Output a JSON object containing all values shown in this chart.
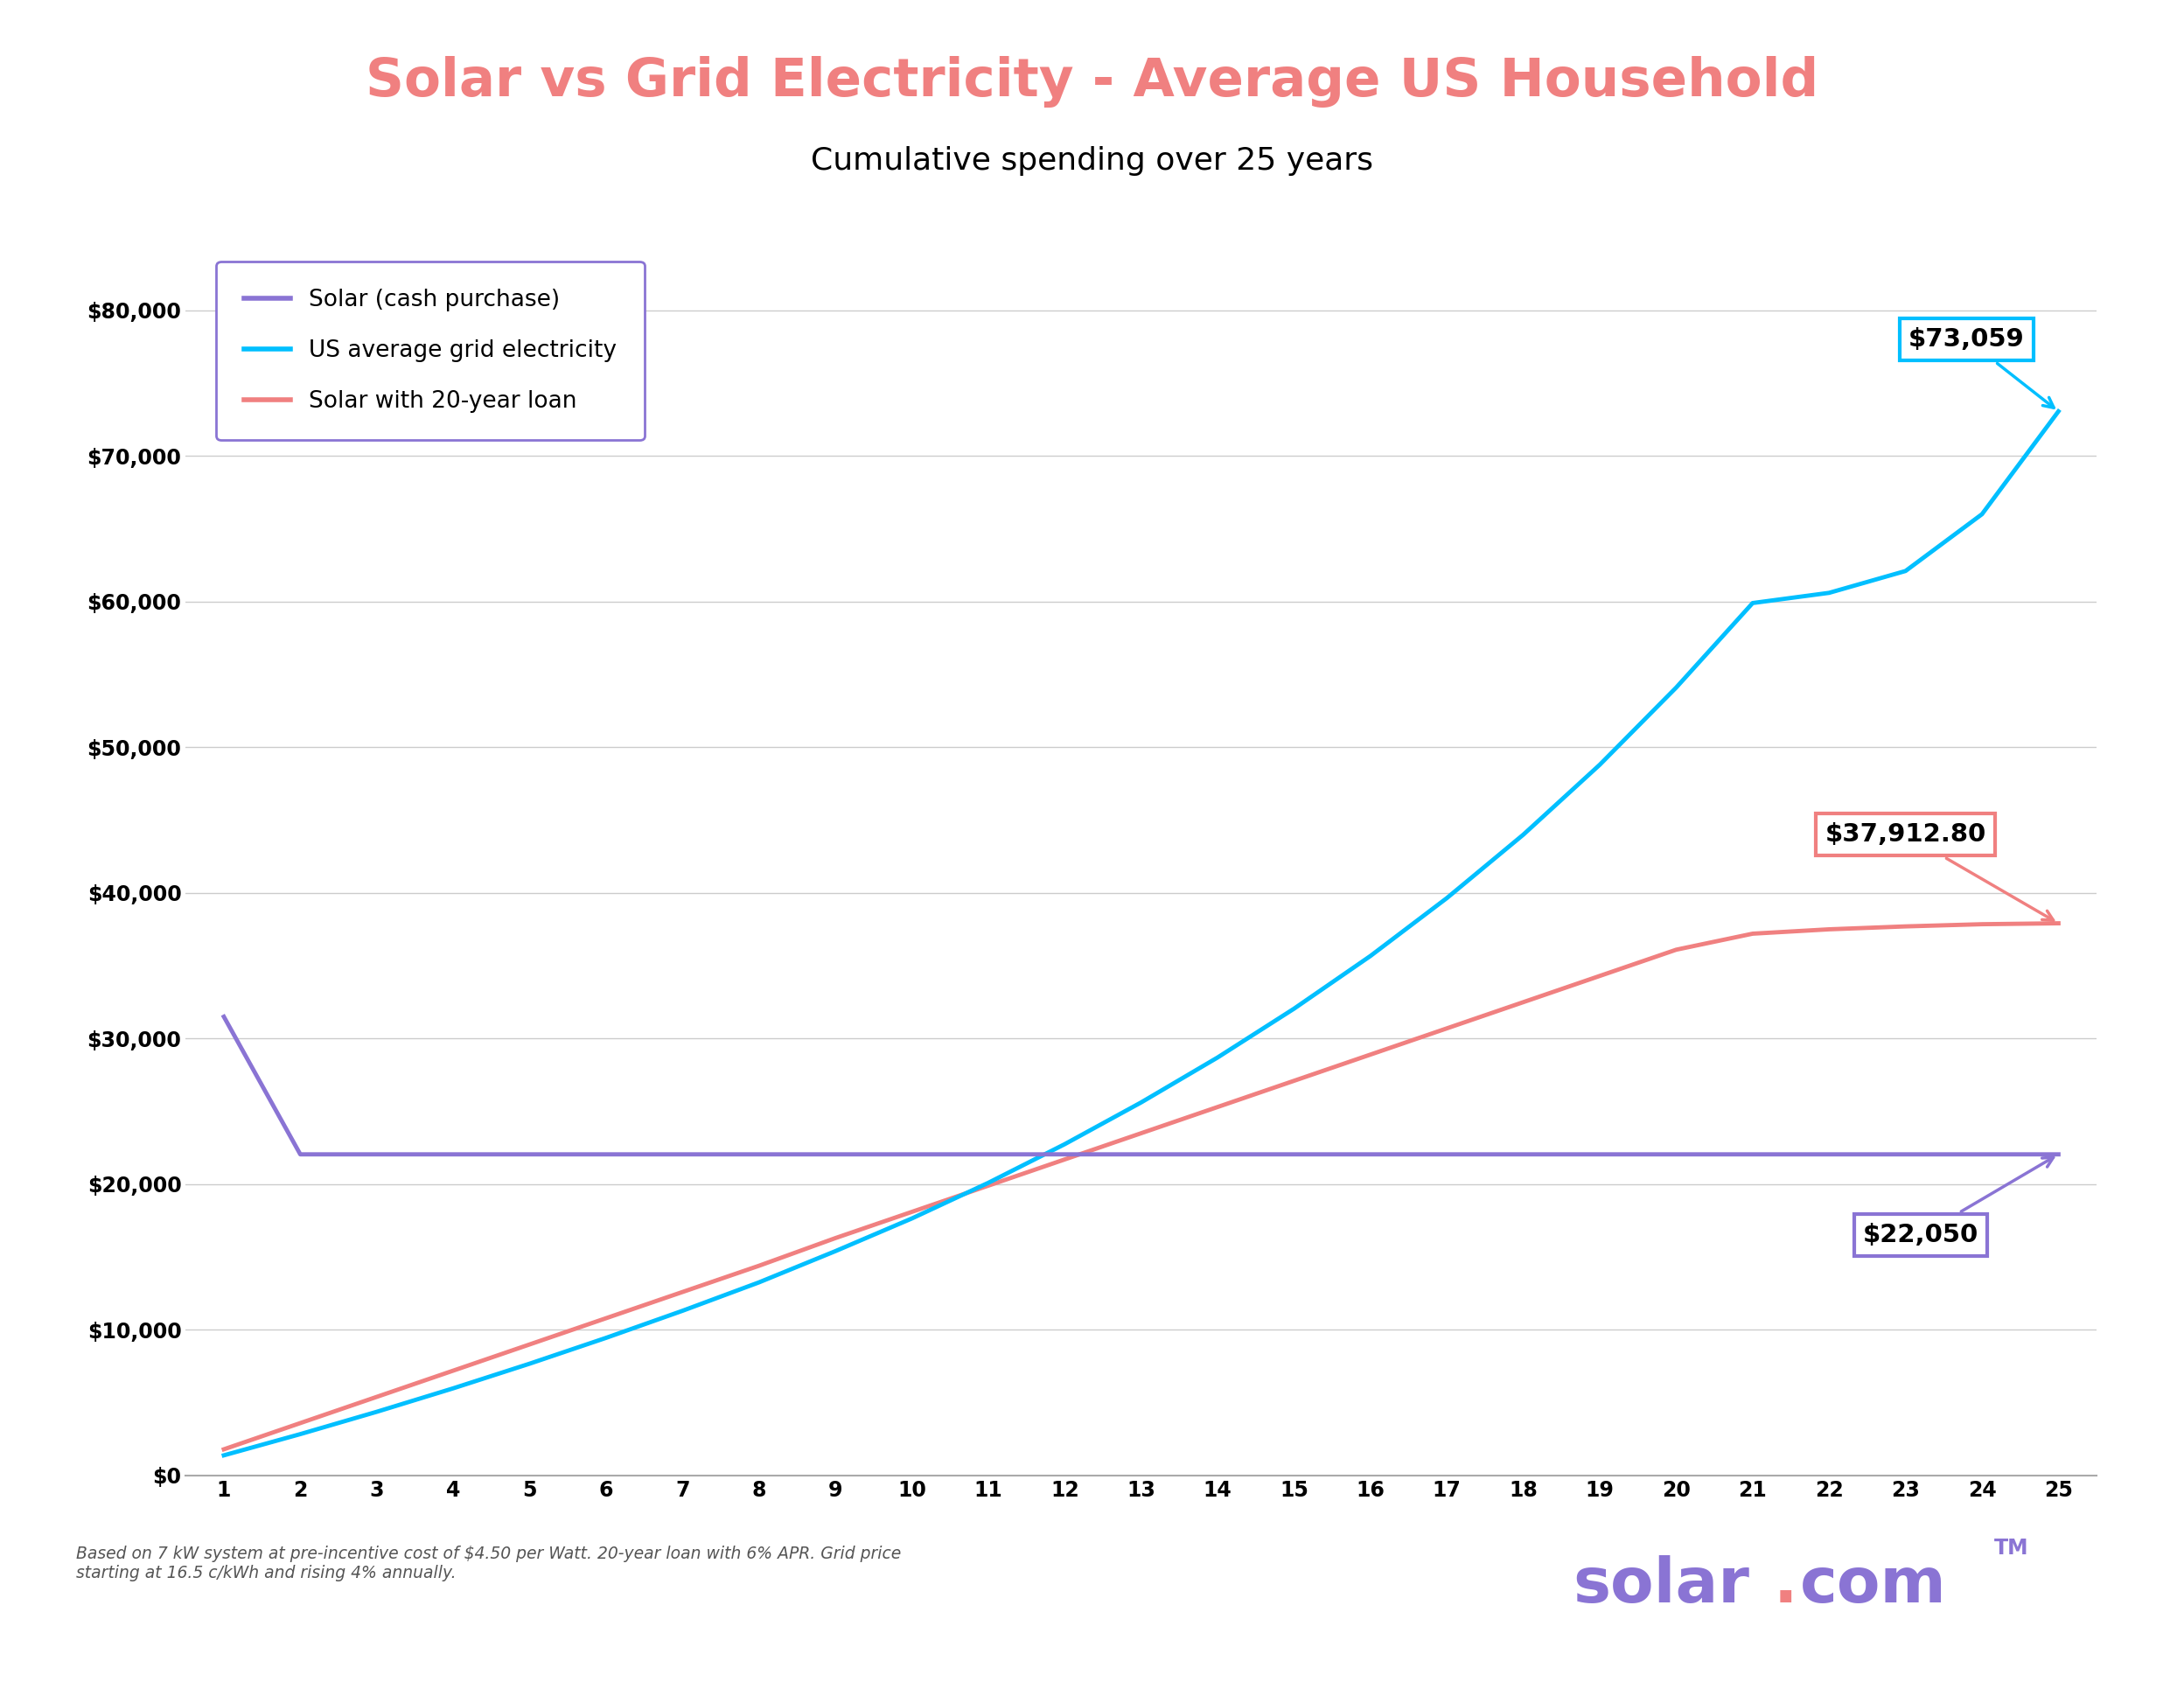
{
  "title": "Solar vs Grid Electricity - Average US Household",
  "subtitle": "Cumulative spending over 25 years",
  "title_color": "#F08080",
  "subtitle_color": "#000000",
  "background_color": "#FFFFFF",
  "years": [
    1,
    2,
    3,
    4,
    5,
    6,
    7,
    8,
    9,
    10,
    11,
    12,
    13,
    14,
    15,
    16,
    17,
    18,
    19,
    20,
    21,
    22,
    23,
    24,
    25
  ],
  "solar_cash": [
    31500,
    22050,
    22050,
    22050,
    22050,
    22050,
    22050,
    22050,
    22050,
    22050,
    22050,
    22050,
    22050,
    22050,
    22050,
    22050,
    22050,
    22050,
    22050,
    22050,
    22050,
    22050,
    22050,
    22050,
    22050
  ],
  "grid_electricity": [
    1386,
    2843,
    4375,
    5986,
    7678,
    9451,
    11310,
    13260,
    15404,
    17647,
    20094,
    22748,
    25615,
    28699,
    32050,
    35671,
    39647,
    44000,
    48800,
    54100,
    59900,
    60600,
    62100,
    66000,
    73059
  ],
  "solar_loan": [
    1800,
    3600,
    5400,
    7200,
    9000,
    10800,
    12600,
    14400,
    16300,
    18100,
    19900,
    21700,
    23500,
    25300,
    27100,
    28900,
    30700,
    32500,
    34300,
    36100,
    37200,
    37500,
    37700,
    37850,
    37912.8
  ],
  "solar_cash_color": "#8A74D4",
  "grid_color": "#00BFFF",
  "loan_color": "#F08080",
  "legend_border_color": "#8A74D4",
  "annotation_grid_value": "$73,059",
  "annotation_grid_box_color": "#00BFFF",
  "annotation_loan_value": "$37,912.80",
  "annotation_loan_box_color": "#F08080",
  "annotation_cash_value": "$22,050",
  "annotation_cash_box_color": "#8A74D4",
  "footer_text": "Based on 7 kW system at pre-incentive cost of $4.50 per Watt. 20-year loan with 6% APR. Grid price\nstarting at 16.5 c/kWh and rising 4% annually.",
  "ylim": [
    0,
    85000
  ],
  "yticks": [
    0,
    10000,
    20000,
    30000,
    40000,
    50000,
    60000,
    70000,
    80000
  ],
  "header_bar_color": "#B090E0",
  "footer_bar_color": "#B090E0",
  "line_width": 3.5
}
